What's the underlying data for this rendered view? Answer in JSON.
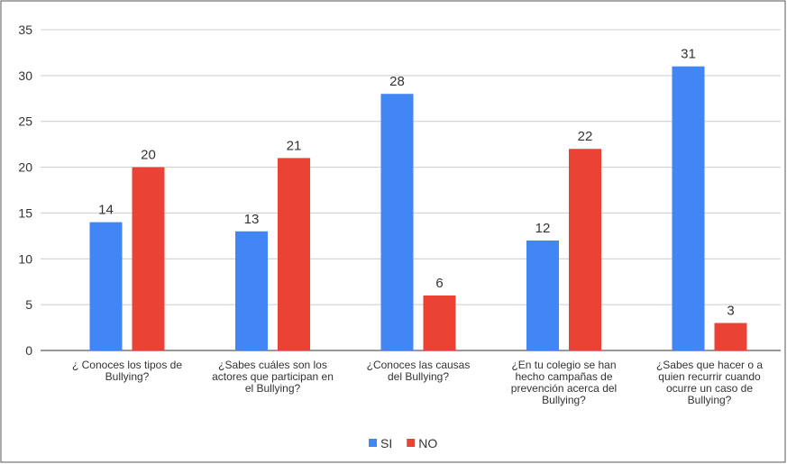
{
  "chart_data": {
    "type": "bar",
    "categories": [
      [
        "¿ Conoces los tipos de",
        "Bullying?"
      ],
      [
        "¿Sabes cuáles son los",
        "actores que participan en",
        "el Bullying?"
      ],
      [
        "¿Conoces las causas",
        "del Bullying?"
      ],
      [
        "¿En tu colegio se han",
        "hecho campañas de",
        "prevención acerca del",
        "Bullying?"
      ],
      [
        "¿Sabes que hacer o a",
        "quien recurrir cuando",
        "ocurre un caso de",
        "Bullying?"
      ]
    ],
    "series": [
      {
        "name": "SI",
        "color": "#4285f4",
        "values": [
          14,
          13,
          28,
          12,
          31
        ]
      },
      {
        "name": "NO",
        "color": "#ea4335",
        "values": [
          20,
          21,
          6,
          22,
          3
        ]
      }
    ],
    "ylim": [
      0,
      35
    ],
    "yticks": [
      0,
      5,
      10,
      15,
      20,
      25,
      30,
      35
    ],
    "grid": true,
    "legend": "bottom"
  }
}
